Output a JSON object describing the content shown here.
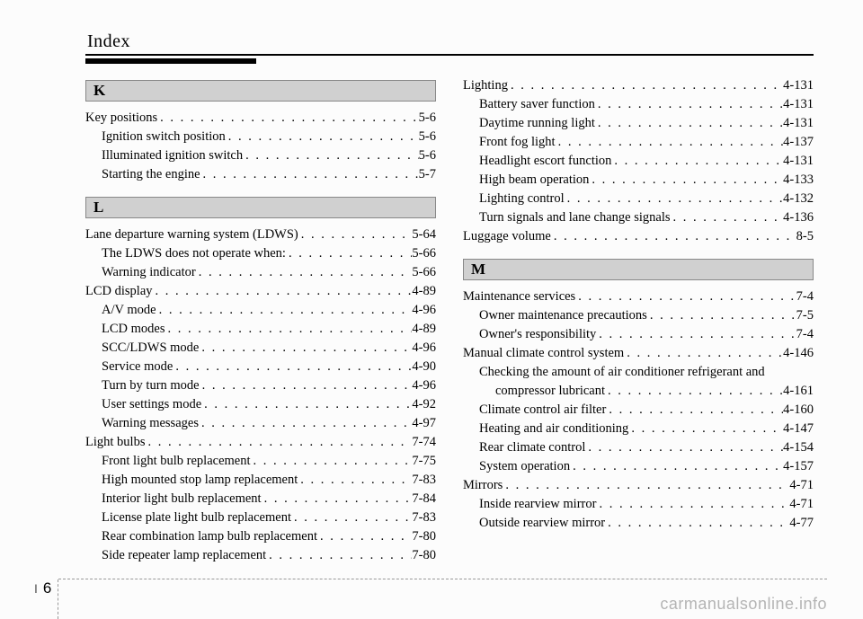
{
  "header": {
    "title": "Index"
  },
  "left": {
    "sections": [
      {
        "letter": "K",
        "entries": [
          {
            "label": "Key positions",
            "page": "5-6",
            "level": 0
          },
          {
            "label": "Ignition switch position",
            "page": "5-6",
            "level": 1
          },
          {
            "label": "Illuminated ignition switch",
            "page": "5-6",
            "level": 1
          },
          {
            "label": "Starting the engine",
            "page": "5-7",
            "level": 1
          }
        ]
      },
      {
        "letter": "L",
        "entries": [
          {
            "label": "Lane departure warning system (LDWS)",
            "page": "5-64",
            "level": 0
          },
          {
            "label": "The LDWS does not operate when:",
            "page": "5-66",
            "level": 1
          },
          {
            "label": "Warning indicator",
            "page": "5-66",
            "level": 1
          },
          {
            "label": "LCD display",
            "page": "4-89",
            "level": 0
          },
          {
            "label": "A/V mode",
            "page": "4-96",
            "level": 1
          },
          {
            "label": "LCD modes",
            "page": "4-89",
            "level": 1
          },
          {
            "label": "SCC/LDWS mode",
            "page": "4-96",
            "level": 1
          },
          {
            "label": "Service mode",
            "page": "4-90",
            "level": 1
          },
          {
            "label": "Turn by turn mode",
            "page": "4-96",
            "level": 1
          },
          {
            "label": "User settings mode",
            "page": "4-92",
            "level": 1
          },
          {
            "label": "Warning messages",
            "page": "4-97",
            "level": 1
          },
          {
            "label": "Light bulbs",
            "page": "7-74",
            "level": 0
          },
          {
            "label": "Front light bulb replacement",
            "page": "7-75",
            "level": 1
          },
          {
            "label": "High mounted stop lamp replacement",
            "page": "7-83",
            "level": 1
          },
          {
            "label": "Interior light bulb replacement",
            "page": "7-84",
            "level": 1
          },
          {
            "label": "License plate light bulb replacement",
            "page": "7-83",
            "level": 1
          },
          {
            "label": "Rear combination lamp bulb replacement",
            "page": "7-80",
            "level": 1
          },
          {
            "label": "Side repeater lamp replacement",
            "page": "7-80",
            "level": 1
          }
        ]
      }
    ]
  },
  "right": {
    "sections": [
      {
        "letter": null,
        "entries": [
          {
            "label": "Lighting",
            "page": "4-131",
            "level": 0
          },
          {
            "label": "Battery saver function",
            "page": "4-131",
            "level": 1
          },
          {
            "label": "Daytime running light",
            "page": "4-131",
            "level": 1
          },
          {
            "label": "Front fog light",
            "page": "4-137",
            "level": 1
          },
          {
            "label": "Headlight escort function",
            "page": "4-131",
            "level": 1
          },
          {
            "label": "High beam operation",
            "page": "4-133",
            "level": 1
          },
          {
            "label": "Lighting control",
            "page": "4-132",
            "level": 1
          },
          {
            "label": "Turn signals and lane change signals",
            "page": "4-136",
            "level": 1
          },
          {
            "label": "Luggage volume",
            "page": "8-5",
            "level": 0
          }
        ]
      },
      {
        "letter": "M",
        "entries": [
          {
            "label": "Maintenance services",
            "page": "7-4",
            "level": 0
          },
          {
            "label": "Owner maintenance precautions",
            "page": "7-5",
            "level": 1
          },
          {
            "label": "Owner's responsibility",
            "page": "7-4",
            "level": 1
          },
          {
            "label": "Manual climate control system",
            "page": "4-146",
            "level": 0
          },
          {
            "label": "Checking the amount of air conditioner refrigerant and",
            "page": "",
            "level": 1,
            "nodots": true
          },
          {
            "label": "compressor lubricant",
            "page": "4-161",
            "level": 2
          },
          {
            "label": "Climate control air filter",
            "page": "4-160",
            "level": 1
          },
          {
            "label": "Heating and air conditioning",
            "page": "4-147",
            "level": 1
          },
          {
            "label": "Rear climate control",
            "page": "4-154",
            "level": 1
          },
          {
            "label": "System operation",
            "page": "4-157",
            "level": 1
          },
          {
            "label": "Mirrors",
            "page": "4-71",
            "level": 0
          },
          {
            "label": "Inside rearview mirror",
            "page": "4-71",
            "level": 1
          },
          {
            "label": "Outside rearview mirror",
            "page": "4-77",
            "level": 1
          }
        ]
      }
    ]
  },
  "footer": {
    "section": "I",
    "page": "6"
  },
  "watermark": "carmanualsonline.info",
  "style": {
    "bg": "#fcfcfc",
    "section_bg": "#d0d0d0",
    "section_border": "#888",
    "font_body": "14.5",
    "font_header": "20"
  }
}
